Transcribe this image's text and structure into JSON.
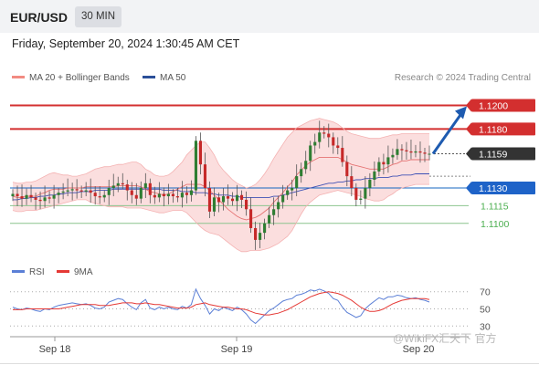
{
  "header": {
    "symbol": "EUR/USD",
    "timeframe": "30 MIN"
  },
  "datetime": "Friday, September 20, 2024 1:30:45 AM CET",
  "legend": {
    "ma20": "MA 20 + Bollinger Bands",
    "ma50": "MA 50",
    "credit": "Research © 2024 Trading Central"
  },
  "rsi_legend": {
    "rsi": "RSI",
    "ma9": "9MA"
  },
  "watermark": "@WikiFX汇天下 官方",
  "colors": {
    "up": "#2e7d32",
    "down": "#c62828",
    "resistance": "#d32f2f",
    "support": "#1565c0",
    "target": "#4caf50",
    "band": "#f9d3d3",
    "ma50": "#3f51b5",
    "rsi": "#5b7fd6",
    "rsi_ma": "#e53935",
    "arrow": "#1e5bb0"
  },
  "chart_data": [
    {
      "type": "candlestick",
      "x_labels": [
        "Sep 18",
        "Sep 19",
        "Sep 20"
      ],
      "ylim": [
        1.1072,
        1.1212
      ],
      "price_levels": [
        {
          "value": 1.12,
          "label": "1.1200",
          "kind": "resistance"
        },
        {
          "value": 1.118,
          "label": "1.1180",
          "kind": "resistance"
        },
        {
          "value": 1.1159,
          "label": "1.1159",
          "kind": "current"
        },
        {
          "value": 1.113,
          "label": "1.1130",
          "kind": "pivot"
        },
        {
          "value": 1.1115,
          "label": "1.1115",
          "kind": "support"
        },
        {
          "value": 1.11,
          "label": "1.1100",
          "kind": "support"
        }
      ],
      "close": [
        1.1125,
        1.1123,
        1.1121,
        1.1124,
        1.1122,
        1.112,
        1.1119,
        1.1122,
        1.1121,
        1.1124,
        1.1126,
        1.1127,
        1.1128,
        1.1129,
        1.1128,
        1.1127,
        1.1128,
        1.1126,
        1.1123,
        1.1122,
        1.1124,
        1.113,
        1.1132,
        1.1134,
        1.1133,
        1.1128,
        1.1124,
        1.1121,
        1.113,
        1.1134,
        1.1124,
        1.1122,
        1.1125,
        1.1123,
        1.1125,
        1.1123,
        1.1122,
        1.1126,
        1.1124,
        1.1128,
        1.117,
        1.115,
        1.113,
        1.111,
        1.1122,
        1.1118,
        1.1123,
        1.1121,
        1.1119,
        1.1124,
        1.112,
        1.1112,
        1.1096,
        1.1086,
        1.1092,
        1.11,
        1.1107,
        1.1112,
        1.1118,
        1.1124,
        1.1128,
        1.113,
        1.114,
        1.1146,
        1.1153,
        1.1166,
        1.1169,
        1.1177,
        1.1176,
        1.1173,
        1.1166,
        1.1164,
        1.1152,
        1.114,
        1.113,
        1.112,
        1.1121,
        1.113,
        1.1137,
        1.1144,
        1.1152,
        1.115,
        1.1156,
        1.1158,
        1.1163,
        1.1162,
        1.1161,
        1.116,
        1.1161,
        1.116,
        1.1159,
        1.1159
      ],
      "bb_upper": [
        1.1135,
        1.1134,
        1.1134,
        1.1135,
        1.1135,
        1.1136,
        1.1138,
        1.114,
        1.1142,
        1.1143,
        1.1142,
        1.1141,
        1.1141,
        1.114,
        1.114,
        1.1141,
        1.1142,
        1.1144,
        1.1146,
        1.1147,
        1.1148,
        1.1148,
        1.1149,
        1.115,
        1.115,
        1.1151,
        1.1152,
        1.1152,
        1.115,
        1.1146,
        1.1144,
        1.1141,
        1.114,
        1.114,
        1.1141,
        1.1144,
        1.1148,
        1.1152,
        1.1158,
        1.1162,
        1.1166,
        1.1169,
        1.1169,
        1.1164,
        1.1158,
        1.115,
        1.1145,
        1.1141,
        1.1137,
        1.1134,
        1.1132,
        1.113,
        1.1131,
        1.1133,
        1.1137,
        1.1142,
        1.1148,
        1.1155,
        1.1161,
        1.1167,
        1.1173,
        1.1177,
        1.1181,
        1.1183,
        1.1185,
        1.1187,
        1.1188,
        1.1189,
        1.1188,
        1.1187,
        1.1186,
        1.1184,
        1.1181,
        1.1178,
        1.1176,
        1.1175,
        1.1174,
        1.1173,
        1.1172,
        1.1172,
        1.1172,
        1.1173,
        1.1174,
        1.1175,
        1.1175,
        1.1176,
        1.1176,
        1.1176,
        1.1176,
        1.1176,
        1.1176,
        1.1176
      ],
      "bb_lower": [
        1.1111,
        1.111,
        1.111,
        1.1111,
        1.1111,
        1.1111,
        1.1112,
        1.1113,
        1.1114,
        1.1115,
        1.1116,
        1.1117,
        1.1118,
        1.1119,
        1.112,
        1.112,
        1.112,
        1.1118,
        1.1117,
        1.1116,
        1.1115,
        1.1114,
        1.1114,
        1.1114,
        1.1114,
        1.1113,
        1.1113,
        1.1113,
        1.1113,
        1.1112,
        1.1111,
        1.111,
        1.1109,
        1.1109,
        1.111,
        1.1111,
        1.1111,
        1.1111,
        1.1109,
        1.1105,
        1.1101,
        1.1097,
        1.1094,
        1.1092,
        1.1091,
        1.109,
        1.1087,
        1.1084,
        1.1081,
        1.1078,
        1.1076,
        1.1076,
        1.1077,
        1.1077,
        1.1077,
        1.1078,
        1.1079,
        1.1081,
        1.1083,
        1.1086,
        1.1089,
        1.1094,
        1.1101,
        1.1108,
        1.1114,
        1.1118,
        1.1121,
        1.1124,
        1.1125,
        1.1126,
        1.1127,
        1.1128,
        1.1127,
        1.1126,
        1.1125,
        1.1124,
        1.1123,
        1.1121,
        1.112,
        1.1119,
        1.1119,
        1.112,
        1.1123,
        1.1125,
        1.1128,
        1.113,
        1.1131,
        1.1132,
        1.1133,
        1.1133,
        1.1133,
        1.1133
      ],
      "ma20": [
        1.1123,
        1.1122,
        1.1122,
        1.1123,
        1.1123,
        1.1123,
        1.1125,
        1.1126,
        1.1128,
        1.1129,
        1.1129,
        1.1129,
        1.113,
        1.113,
        1.113,
        1.113,
        1.1131,
        1.1131,
        1.1131,
        1.1131,
        1.1131,
        1.1131,
        1.1131,
        1.1132,
        1.1132,
        1.1132,
        1.1132,
        1.1132,
        1.1131,
        1.1129,
        1.1127,
        1.1126,
        1.1125,
        1.1124,
        1.1125,
        1.1127,
        1.1129,
        1.1131,
        1.1133,
        1.1133,
        1.1133,
        1.1133,
        1.1131,
        1.1128,
        1.1124,
        1.112,
        1.1116,
        1.1112,
        1.1109,
        1.1106,
        1.1104,
        1.1103,
        1.1104,
        1.1105,
        1.1107,
        1.111,
        1.1113,
        1.1118,
        1.1122,
        1.1126,
        1.1131,
        1.1135,
        1.1141,
        1.1145,
        1.1149,
        1.1152,
        1.1154,
        1.1156,
        1.1156,
        1.1156,
        1.1156,
        1.1156,
        1.1154,
        1.1152,
        1.115,
        1.1149,
        1.1148,
        1.1147,
        1.1146,
        1.1146,
        1.1146,
        1.1146,
        1.1148,
        1.115,
        1.1151,
        1.1153,
        1.1153,
        1.1154,
        1.1154,
        1.1154,
        1.1154,
        1.1154
      ],
      "ma50": [
        1.112,
        1.112,
        1.1121,
        1.1121,
        1.1122,
        1.1122,
        1.1123,
        1.1123,
        1.1124,
        1.1124,
        1.1125,
        1.1125,
        1.1126,
        1.1126,
        1.1126,
        1.1127,
        1.1127,
        1.1127,
        1.1128,
        1.1128,
        1.1128,
        1.1128,
        1.1129,
        1.1129,
        1.1129,
        1.1129,
        1.1129,
        1.1129,
        1.1129,
        1.1129,
        1.1129,
        1.1129,
        1.1129,
        1.1128,
        1.1128,
        1.1128,
        1.1128,
        1.1127,
        1.1127,
        1.1127,
        1.1126,
        1.1126,
        1.1126,
        1.1125,
        1.1125,
        1.1124,
        1.1124,
        1.1124,
        1.1123,
        1.1123,
        1.1122,
        1.1122,
        1.1122,
        1.1122,
        1.1122,
        1.1122,
        1.1122,
        1.1123,
        1.1123,
        1.1124,
        1.1125,
        1.1126,
        1.1127,
        1.1128,
        1.1129,
        1.113,
        1.1131,
        1.1132,
        1.1133,
        1.1134,
        1.1134,
        1.1135,
        1.1135,
        1.1136,
        1.1136,
        1.1137,
        1.1137,
        1.1138,
        1.1138,
        1.1138,
        1.1139,
        1.1139,
        1.1139,
        1.114,
        1.114,
        1.1141,
        1.1141,
        1.1141,
        1.1142,
        1.1142,
        1.1142,
        1.1142
      ]
    },
    {
      "type": "line",
      "title": "RSI",
      "ylim": [
        25,
        75
      ],
      "y_ticks": [
        30,
        50,
        70
      ],
      "series": [
        {
          "name": "RSI",
          "values": [
            52,
            50,
            49,
            51,
            50,
            48,
            47,
            50,
            49,
            52,
            54,
            55,
            56,
            57,
            56,
            55,
            56,
            54,
            51,
            50,
            52,
            58,
            60,
            62,
            61,
            56,
            52,
            49,
            57,
            61,
            51,
            49,
            52,
            50,
            52,
            50,
            49,
            53,
            51,
            55,
            73,
            62,
            54,
            44,
            50,
            48,
            52,
            50,
            48,
            52,
            49,
            44,
            37,
            33,
            38,
            43,
            48,
            51,
            55,
            59,
            61,
            62,
            66,
            67,
            69,
            72,
            71,
            73,
            71,
            68,
            62,
            60,
            52,
            46,
            43,
            40,
            42,
            50,
            55,
            59,
            63,
            61,
            64,
            64,
            66,
            65,
            63,
            62,
            63,
            61,
            60,
            58
          ]
        },
        {
          "name": "9MA",
          "values": [
            49,
            49,
            49,
            50,
            50,
            50,
            50,
            50,
            50,
            50,
            50,
            51,
            52,
            53,
            54,
            55,
            55,
            55,
            55,
            54,
            54,
            54,
            55,
            56,
            57,
            57,
            57,
            56,
            56,
            57,
            56,
            55,
            55,
            54,
            53,
            52,
            51,
            51,
            51,
            52,
            55,
            56,
            57,
            55,
            54,
            53,
            52,
            52,
            51,
            50,
            50,
            49,
            47,
            45,
            44,
            43,
            43,
            44,
            45,
            47,
            49,
            52,
            55,
            58,
            61,
            64,
            66,
            68,
            69,
            70,
            69,
            68,
            66,
            63,
            60,
            56,
            52,
            49,
            47,
            47,
            48,
            50,
            53,
            56,
            58,
            60,
            61,
            62,
            62,
            62,
            62,
            61
          ]
        }
      ]
    }
  ]
}
